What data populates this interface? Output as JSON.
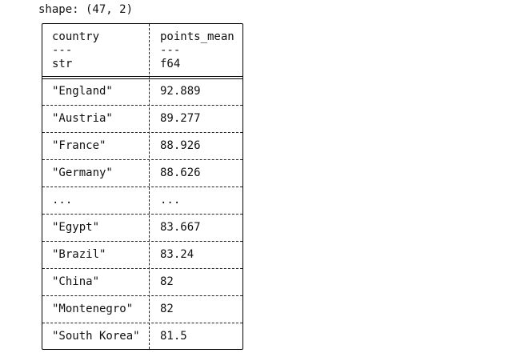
{
  "shape_text": "shape: (47, 2)",
  "table": {
    "columns": [
      {
        "name": "country",
        "separator": "---",
        "dtype": "str"
      },
      {
        "name": "points_mean",
        "separator": "---",
        "dtype": "f64"
      }
    ],
    "rows": [
      [
        "\"England\"",
        "92.889"
      ],
      [
        "\"Austria\"",
        "89.277"
      ],
      [
        "\"France\"",
        "88.926"
      ],
      [
        "\"Germany\"",
        "88.626"
      ],
      [
        "...",
        "..."
      ],
      [
        "\"Egypt\"",
        "83.667"
      ],
      [
        "\"Brazil\"",
        "83.24"
      ],
      [
        "\"China\"",
        "82"
      ],
      [
        "\"Montenegro\"",
        "82"
      ],
      [
        "\"South Korea\"",
        "81.5"
      ]
    ]
  }
}
